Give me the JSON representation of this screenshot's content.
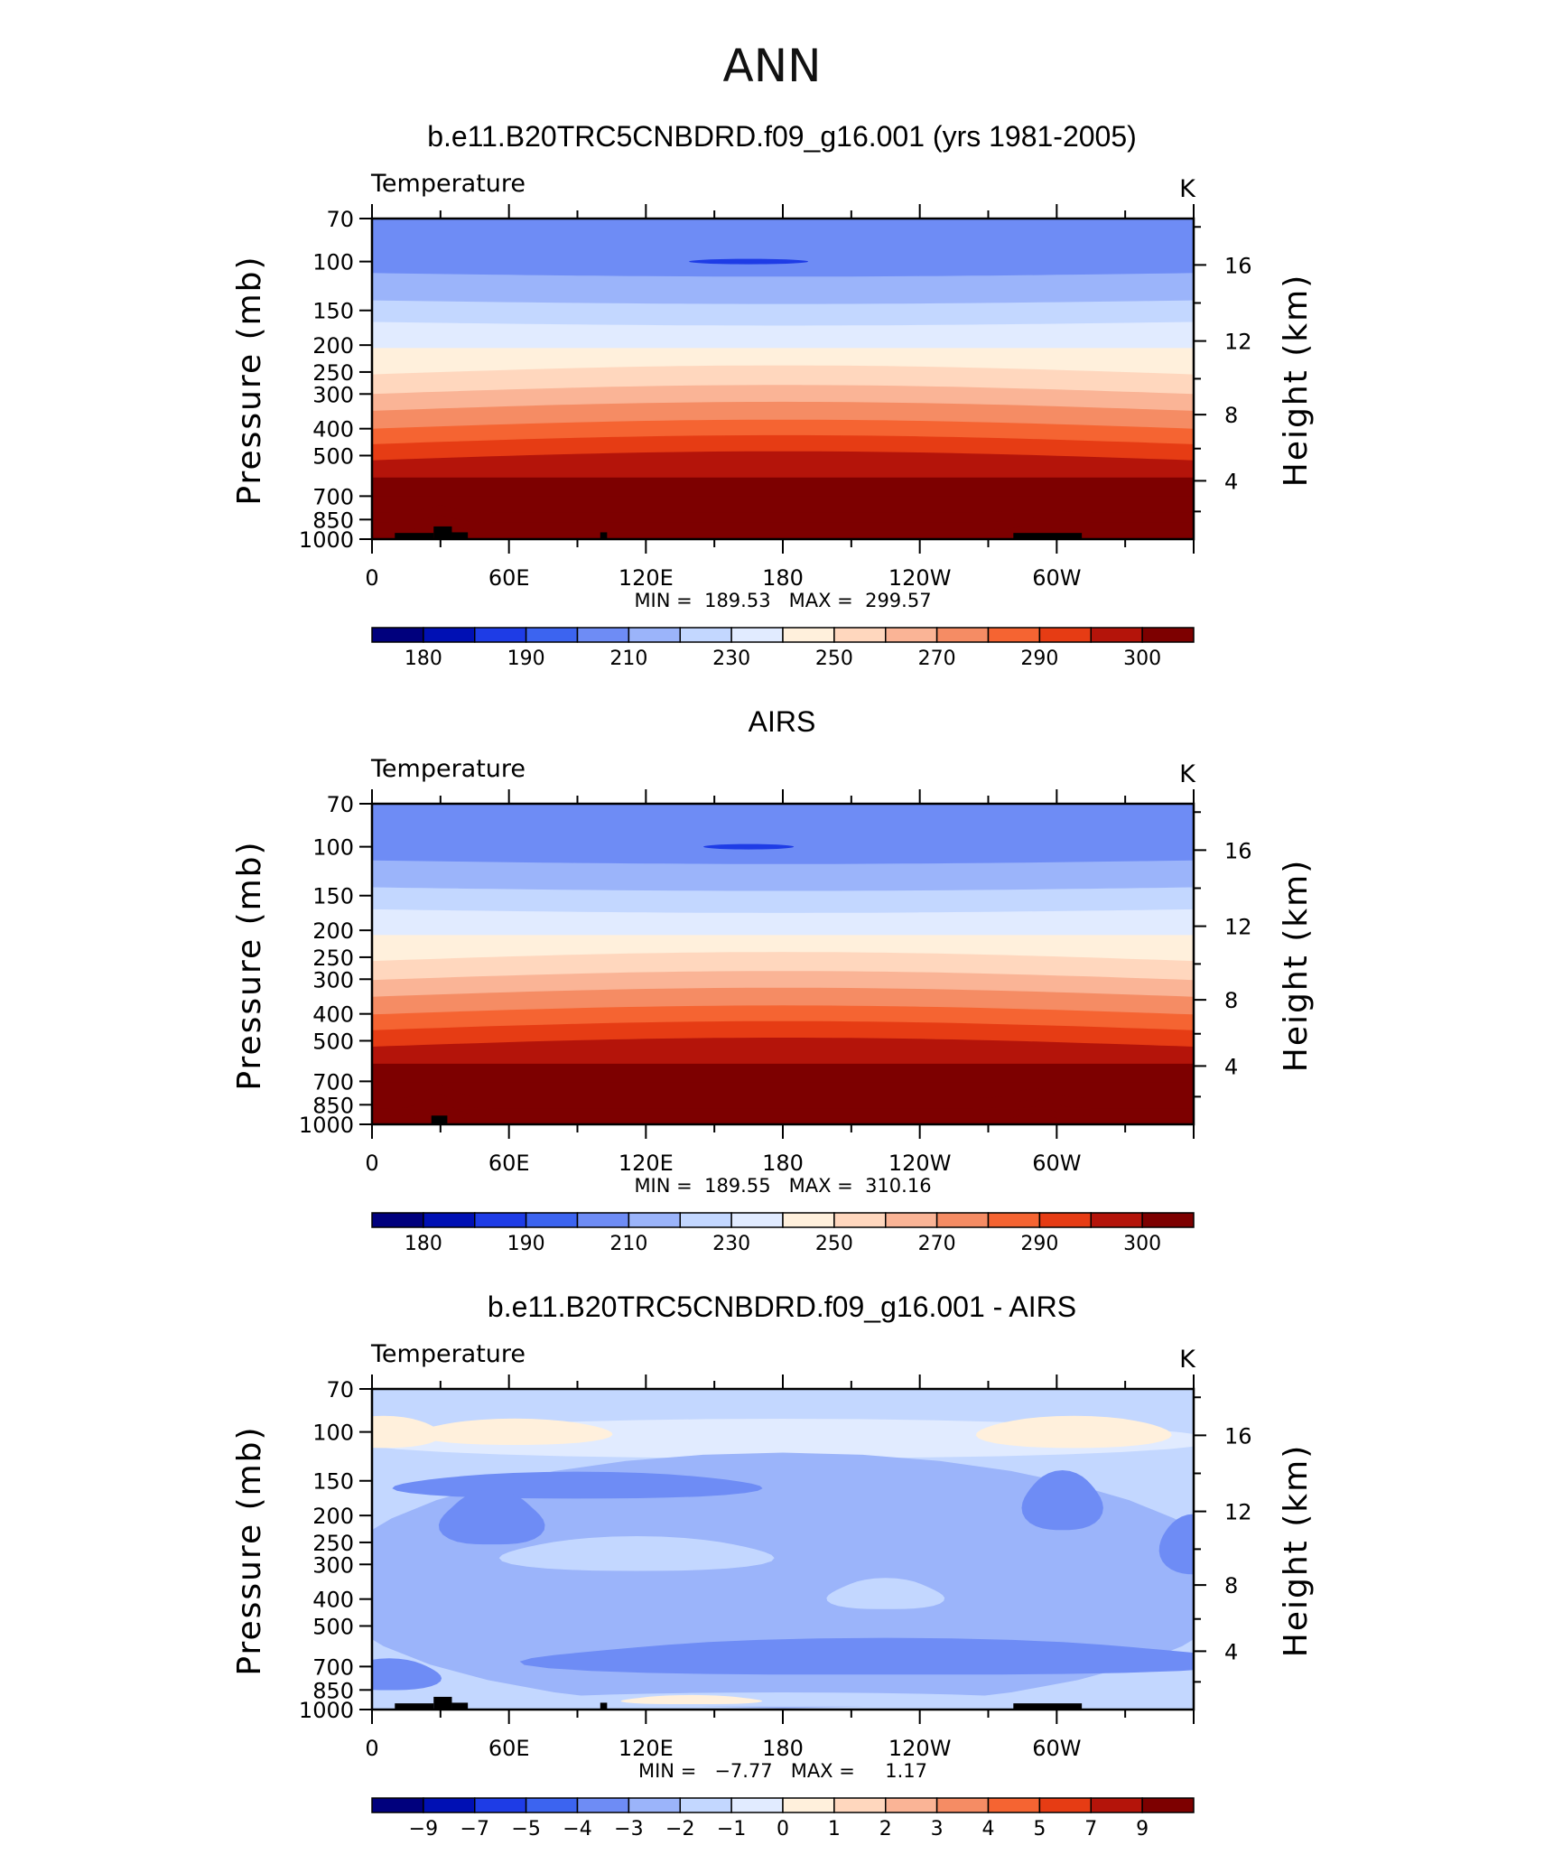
{
  "figure": {
    "title": "ANN"
  },
  "colors": {
    "temperature_levels": [
      "#00007d",
      "#0010b4",
      "#1e3ce6",
      "#3c64f0",
      "#6e8cf5",
      "#9bb4fa",
      "#c3d7ff",
      "#e1ebff",
      "#fff0dc",
      "#ffd7be",
      "#fab496",
      "#f58c64",
      "#f56432",
      "#e63c14",
      "#b4140a",
      "#7d0000"
    ],
    "difference_levels": [
      "#00007d",
      "#0010b4",
      "#1e3ce6",
      "#3c64f0",
      "#6e8cf5",
      "#9bb4fa",
      "#c3d7ff",
      "#e1ebff",
      "#fff0dc",
      "#ffd7be",
      "#fab496",
      "#f58c64",
      "#f56432",
      "#e63c14",
      "#b4140a",
      "#7d0000"
    ],
    "topography": "#000000"
  },
  "chart_data": [
    {
      "type": "heatmap",
      "title": "b.e11.B20TRC5CNBDRD.f09_g16.001 (yrs 1981-2005)",
      "left_label": "Temperature",
      "right_label": "K",
      "ylabel": "Pressure (mb)",
      "ylabel_right": "Height (km)",
      "x_ticks": [
        "0",
        "60E",
        "120E",
        "180",
        "120W",
        "60W"
      ],
      "x_tick_values": [
        0,
        60,
        120,
        180,
        240,
        300
      ],
      "xlim": [
        0,
        360
      ],
      "y_ticks": [
        "70",
        "100",
        "150",
        "200",
        "250",
        "300",
        "400",
        "500",
        "700",
        "850",
        "1000"
      ],
      "y_tick_values": [
        70,
        100,
        150,
        200,
        250,
        300,
        400,
        500,
        700,
        850,
        1000
      ],
      "ylim": [
        1000,
        70
      ],
      "y_scale": "log",
      "height_ticks": [
        "16",
        "12",
        "8",
        "4"
      ],
      "height_tick_values": [
        16,
        12,
        8,
        4
      ],
      "stats": "MIN =  189.53   MAX =  299.57",
      "colorbar_labels": [
        "180",
        "190",
        "210",
        "230",
        "250",
        "270",
        "290",
        "300"
      ],
      "levels_upper": [
        180,
        185,
        190,
        200,
        210,
        220,
        230,
        240,
        250,
        260,
        270,
        280,
        290,
        295,
        300
      ],
      "colorbar_label_positions": [
        1,
        3,
        5,
        7,
        9,
        11,
        13,
        15
      ],
      "contour_pressures": [
        110,
        138,
        165,
        205,
        255,
        300,
        345,
        400,
        455,
        520,
        600,
        700,
        800,
        870,
        930,
        980
      ]
    },
    {
      "type": "heatmap",
      "title": "AIRS",
      "left_label": "Temperature",
      "right_label": "K",
      "ylabel": "Pressure (mb)",
      "ylabel_right": "Height (km)",
      "x_ticks": [
        "0",
        "60E",
        "120E",
        "180",
        "120W",
        "60W"
      ],
      "x_tick_values": [
        0,
        60,
        120,
        180,
        240,
        300
      ],
      "xlim": [
        0,
        360
      ],
      "y_ticks": [
        "70",
        "100",
        "150",
        "200",
        "250",
        "300",
        "400",
        "500",
        "700",
        "850",
        "1000"
      ],
      "y_tick_values": [
        70,
        100,
        150,
        200,
        250,
        300,
        400,
        500,
        700,
        850,
        1000
      ],
      "ylim": [
        1000,
        70
      ],
      "y_scale": "log",
      "height_ticks": [
        "16",
        "12",
        "8",
        "4"
      ],
      "height_tick_values": [
        16,
        12,
        8,
        4
      ],
      "stats": "MIN =  189.55   MAX =  310.16",
      "colorbar_labels": [
        "180",
        "190",
        "210",
        "230",
        "250",
        "270",
        "290",
        "300"
      ],
      "levels_upper": [
        180,
        185,
        190,
        200,
        210,
        220,
        230,
        240,
        250,
        260,
        270,
        280,
        290,
        295,
        300
      ],
      "colorbar_label_positions": [
        1,
        3,
        5,
        7,
        9,
        11,
        13,
        15
      ],
      "contour_pressures": [
        112,
        140,
        168,
        208,
        258,
        302,
        347,
        402,
        458,
        525,
        605,
        705,
        805,
        875,
        932,
        982
      ]
    },
    {
      "type": "heatmap",
      "title": "b.e11.B20TRC5CNBDRD.f09_g16.001 - AIRS",
      "left_label": "Temperature",
      "right_label": "K",
      "ylabel": "Pressure (mb)",
      "ylabel_right": "Height (km)",
      "x_ticks": [
        "0",
        "60E",
        "120E",
        "180",
        "120W",
        "60W"
      ],
      "x_tick_values": [
        0,
        60,
        120,
        180,
        240,
        300
      ],
      "xlim": [
        0,
        360
      ],
      "y_ticks": [
        "70",
        "100",
        "150",
        "200",
        "250",
        "300",
        "400",
        "500",
        "700",
        "850",
        "1000"
      ],
      "y_tick_values": [
        70,
        100,
        150,
        200,
        250,
        300,
        400,
        500,
        700,
        850,
        1000
      ],
      "ylim": [
        1000,
        70
      ],
      "y_scale": "log",
      "height_ticks": [
        "16",
        "12",
        "8",
        "4"
      ],
      "height_tick_values": [
        16,
        12,
        8,
        4
      ],
      "stats": "MIN =   −7.77   MAX =     1.17",
      "colorbar_labels": [
        "−9",
        "−7",
        "−5",
        "−4",
        "−3",
        "−2",
        "−1",
        "0",
        "1",
        "2",
        "3",
        "4",
        "5",
        "7",
        "9"
      ],
      "levels_upper": [
        -9,
        -7,
        -5,
        -4,
        -3,
        -2,
        -1,
        0,
        1,
        2,
        3,
        4,
        5,
        7,
        9
      ],
      "colorbar_label_positions": [
        1,
        2,
        3,
        4,
        5,
        6,
        7,
        8,
        9,
        10,
        11,
        12,
        13,
        14,
        15
      ]
    }
  ]
}
